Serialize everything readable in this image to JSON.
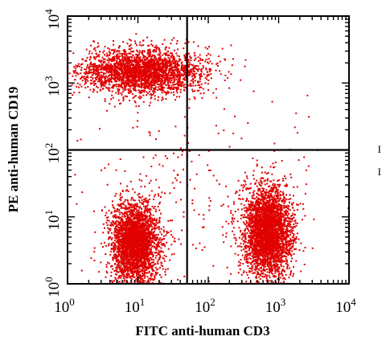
{
  "chart_data": {
    "type": "scatter",
    "title": "",
    "xlabel": "FITC anti-human CD3",
    "ylabel": "PE anti-human CD19",
    "xscale": "log",
    "yscale": "log",
    "xlim": [
      1,
      10000
    ],
    "ylim": [
      1,
      10000
    ],
    "x_ticks": [
      {
        "base": "10",
        "exp": "0",
        "value": 1
      },
      {
        "base": "10",
        "exp": "1",
        "value": 10
      },
      {
        "base": "10",
        "exp": "2",
        "value": 100
      },
      {
        "base": "10",
        "exp": "3",
        "value": 1000
      },
      {
        "base": "10",
        "exp": "4",
        "value": 10000
      }
    ],
    "y_ticks": [
      {
        "base": "10",
        "exp": "0",
        "value": 1
      },
      {
        "base": "10",
        "exp": "1",
        "value": 10
      },
      {
        "base": "10",
        "exp": "2",
        "value": 100
      },
      {
        "base": "10",
        "exp": "3",
        "value": 1000
      },
      {
        "base": "10",
        "exp": "4",
        "value": 10000
      }
    ],
    "quadrant_gate": {
      "x": 50,
      "y": 100
    },
    "series": [
      {
        "color": "#e00000",
        "populations": [
          {
            "label": "CD19+ B cells (upper-left)",
            "x_center": 12,
            "y_center": 1500,
            "n": 2600,
            "x_spread_log": 0.42,
            "y_spread_log": 0.17
          },
          {
            "label": "CD3-CD19- cells (lower-left)",
            "x_center": 9,
            "y_center": 4,
            "n": 2900,
            "x_spread_log": 0.17,
            "y_spread_log": 0.3
          },
          {
            "label": "CD3+ T cells (lower-right)",
            "x_center": 700,
            "y_center": 6,
            "n": 3200,
            "x_spread_log": 0.17,
            "y_spread_log": 0.33
          },
          {
            "label": "background events",
            "x_center": 60,
            "y_center": 30,
            "n": 260,
            "x_spread_log": 0.9,
            "y_spread_log": 0.9
          }
        ]
      }
    ],
    "grid": false,
    "legend": "none"
  },
  "side_marks": [
    "I",
    "I"
  ]
}
